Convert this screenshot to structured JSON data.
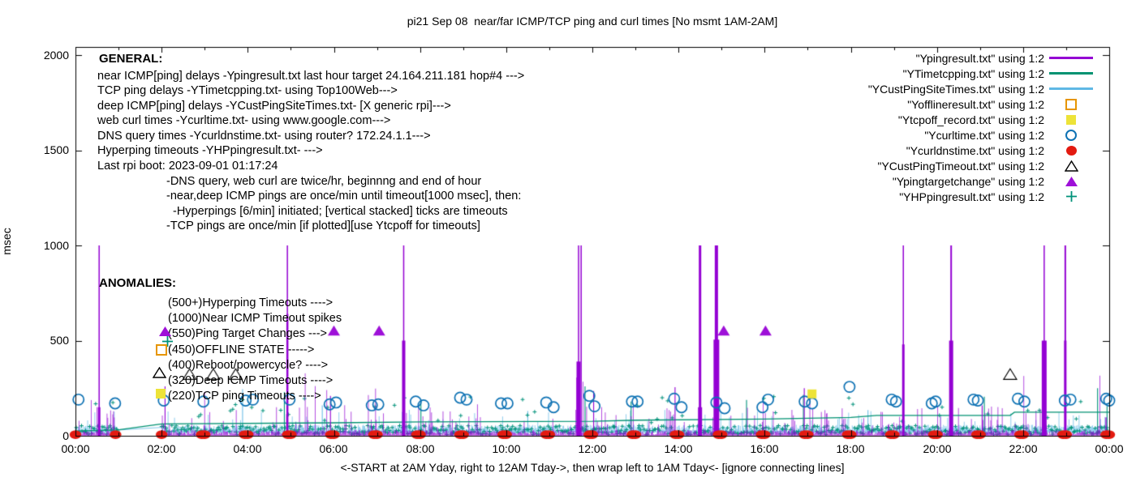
{
  "title": "pi21 Sep 08  near/far ICMP/TCP ping and curl times [No msmt 1AM-2AM]",
  "axes": {
    "ylabel": "msec",
    "xlabel": "<-START at 2AM Yday, right to 12AM Tday->, then wrap left to 1AM Tday<- [ignore connecting lines]",
    "yticks": [
      "0",
      "500",
      "1000",
      "1500",
      "2000"
    ],
    "xticks": [
      "00:00",
      "02:00",
      "04:00",
      "06:00",
      "08:00",
      "10:00",
      "12:00",
      "14:00",
      "16:00",
      "18:00",
      "20:00",
      "22:00",
      "00:00"
    ]
  },
  "legend": {
    "items": [
      {
        "label": "\"Ypingresult.txt\" using 1:2",
        "marker": "line",
        "color": "#9400D3"
      },
      {
        "label": "\"YTimetcpping.txt\" using 1:2",
        "marker": "line",
        "color": "#009272"
      },
      {
        "label": "\"YCustPingSiteTimes.txt\" using 1:2",
        "marker": "line",
        "color": "#5FB8E5"
      },
      {
        "label": "\"Yofflineresult.txt\" using 1:2",
        "marker": "square-open",
        "color": "#E69500"
      },
      {
        "label": "\"Ytcpoff_record.txt\" using 1:2",
        "marker": "square-fill",
        "color": "#EDE338"
      },
      {
        "label": "\"Ycurltime.txt\" using 1:2",
        "marker": "circle-open",
        "color": "#0E72B4"
      },
      {
        "label": "\"Ycurldnstime.txt\" using 1:2",
        "marker": "circle-fill",
        "color": "#E31A10"
      },
      {
        "label": "\"YCustPingTimeout.txt\" using 1:2",
        "marker": "triangle-open",
        "color": "#000000"
      },
      {
        "label": "\"Ypingtargetchange\" using 1:2",
        "marker": "triangle-fill",
        "color": "#9E10D8"
      },
      {
        "label": "\"YHPpingresult.txt\" using 1:2",
        "marker": "plus",
        "color": "#00927A"
      }
    ]
  },
  "general": {
    "heading": "GENERAL:",
    "lines": [
      "near ICMP[ping] delays -Ypingresult.txt last hour target 24.164.211.181 hop#4 --->",
      "TCP ping delays -YTimetcpping.txt- using Top100Web--->",
      "deep ICMP[ping] delays -YCustPingSiteTimes.txt- [X generic rpi]--->",
      "web curl times -Ycurltime.txt- using www.google.com--->",
      "DNS query times -Ycurldnstime.txt- using router? 172.24.1.1--->",
      "Hyperping timeouts -YHPpingresult.txt- --->",
      "Last rpi boot: 2023-09-01 01:17:24",
      "-DNS query, web curl are twice/hr, beginnng and end of hour",
      "-near,deep ICMP pings are once/min until timeout[1000 msec], then:",
      "-Hyperpings [6/min] initiated; [vertical stacked] ticks are timeouts",
      "-TCP pings are once/min [if plotted][use Ytcpoff for timeouts]"
    ]
  },
  "anomalies": {
    "heading": "ANOMALIES:",
    "lines": [
      "(500+)Hyperping Timeouts ---->",
      "(1000)Near ICMP Timeout spikes",
      "(550)Ping Target Changes --->",
      "(450)OFFLINE STATE ----->",
      "(400)Reboot/powercycle? ---->",
      "(320)Deep ICMP Timeouts ---->",
      "(220)TCP ping Timeouts ---->"
    ]
  },
  "chart_data": {
    "type": "line",
    "title": "pi21 Sep 08  near/far ICMP/TCP ping and curl times [No msmt 1AM-2AM]",
    "xlabel": "<-START at 2AM Yday, right to 12AM Tday->, then wrap left to 1AM Tday<- [ignore connecting lines]",
    "ylabel": "msec",
    "xlim": [
      0,
      24
    ],
    "ylim": [
      0,
      2000
    ],
    "x_tick_step_hours": 2,
    "x_minor_tick_hours": 1,
    "grid": false,
    "legend_position": "top-right",
    "no_measurement_gap_hours": [
      1,
      2
    ],
    "colors": {
      "near_icmp": "#9400D3",
      "tcp_ping": "#009272",
      "deep_icmp": "#5FB8E5",
      "offline": "#E69500",
      "tcp_off": "#EDE338",
      "curl": "#0E72B4",
      "dns": "#E31A10",
      "deep_timeout": "#000000",
      "target_change": "#9E10D8",
      "hyperping": "#00927A"
    },
    "series": {
      "near_icmp_timeout_spikes": [
        {
          "t": 0.55,
          "v": 1000,
          "w": 1.5,
          "shoulder": 150,
          "sw": 3
        },
        {
          "t": 4.92,
          "v": 1000,
          "w": 1.5,
          "shoulder": 640,
          "sw": 2.5
        },
        {
          "t": 7.62,
          "v": 1000,
          "w": 1.5,
          "shoulder": 500,
          "sw": 4
        },
        {
          "t": 11.68,
          "v": 1000,
          "w": 1.5,
          "shoulder": 390,
          "sw": 5
        },
        {
          "t": 11.74,
          "v": 1000,
          "w": 1.5
        },
        {
          "t": 14.5,
          "v": 1000,
          "w": 3,
          "shoulder": 150,
          "sw": 5
        },
        {
          "t": 14.88,
          "v": 1000,
          "w": 4,
          "shoulder": 505,
          "sw": 7
        },
        {
          "t": 19.22,
          "v": 1000,
          "w": 1.5,
          "shoulder": 480,
          "sw": 3
        },
        {
          "t": 20.33,
          "v": 1000,
          "w": 2,
          "shoulder": 500,
          "sw": 5
        },
        {
          "t": 22.49,
          "v": 1000,
          "w": 1.5,
          "shoulder": 500,
          "sw": 6
        },
        {
          "t": 22.98,
          "v": 1000,
          "w": 2,
          "shoulder": 500,
          "sw": 3
        }
      ],
      "near_icmp_medium_spikes": [
        {
          "t": 2.08,
          "v": 260
        },
        {
          "t": 5.92,
          "v": 210
        },
        {
          "t": 12.03,
          "v": 235
        },
        {
          "t": 13.92,
          "v": 255
        },
        {
          "t": 16.92,
          "v": 250
        },
        {
          "t": 21.05,
          "v": 160
        }
      ],
      "tcp_ping_line": [
        [
          0,
          25
        ],
        [
          0.97,
          30
        ],
        [
          2,
          62
        ],
        [
          6,
          68
        ],
        [
          8,
          73
        ],
        [
          12,
          76
        ],
        [
          13,
          82
        ],
        [
          16,
          88
        ],
        [
          18,
          96
        ],
        [
          18.6,
          107
        ],
        [
          21.7,
          107
        ],
        [
          21.8,
          124
        ],
        [
          24,
          124
        ]
      ],
      "hyperping_spikes": [
        {
          "t": 4.85,
          "v": 230
        },
        {
          "t": 8.02,
          "v": 185
        },
        {
          "t": 11.83,
          "v": 260
        },
        {
          "t": 12.9,
          "v": 180
        },
        {
          "t": 15.58,
          "v": 188
        },
        {
          "t": 16.9,
          "v": 215
        },
        {
          "t": 21.1,
          "v": 205
        },
        {
          "t": 23.73,
          "v": 250
        },
        {
          "t": 23.95,
          "v": 155
        }
      ],
      "deep_icmp_spikes": [
        {
          "t": 3.88,
          "v": 245
        },
        {
          "t": 5.73,
          "v": 160
        },
        {
          "t": 10.5,
          "v": 130
        },
        {
          "t": 18.4,
          "v": 135
        }
      ],
      "curl_circles": [
        {
          "t": 0.07,
          "v": 190
        },
        {
          "t": 0.92,
          "v": 170
        },
        {
          "t": 2.05,
          "v": 185
        },
        {
          "t": 2.97,
          "v": 180
        },
        {
          "t": 3.95,
          "v": 185
        },
        {
          "t": 4.12,
          "v": 190
        },
        {
          "t": 4.97,
          "v": 190
        },
        {
          "t": 5.9,
          "v": 165
        },
        {
          "t": 6.05,
          "v": 175
        },
        {
          "t": 6.88,
          "v": 160
        },
        {
          "t": 7.03,
          "v": 165
        },
        {
          "t": 7.9,
          "v": 180
        },
        {
          "t": 8.08,
          "v": 160
        },
        {
          "t": 8.93,
          "v": 200
        },
        {
          "t": 9.08,
          "v": 190
        },
        {
          "t": 9.88,
          "v": 170
        },
        {
          "t": 10.03,
          "v": 170
        },
        {
          "t": 10.93,
          "v": 175
        },
        {
          "t": 11.1,
          "v": 150
        },
        {
          "t": 11.93,
          "v": 210
        },
        {
          "t": 12.05,
          "v": 155
        },
        {
          "t": 12.92,
          "v": 180
        },
        {
          "t": 13.05,
          "v": 180
        },
        {
          "t": 13.9,
          "v": 195
        },
        {
          "t": 14.07,
          "v": 150
        },
        {
          "t": 14.88,
          "v": 175
        },
        {
          "t": 15.07,
          "v": 145
        },
        {
          "t": 15.95,
          "v": 150
        },
        {
          "t": 16.08,
          "v": 190
        },
        {
          "t": 16.93,
          "v": 180
        },
        {
          "t": 17.1,
          "v": 170
        },
        {
          "t": 17.97,
          "v": 257
        },
        {
          "t": 18.95,
          "v": 190
        },
        {
          "t": 19.05,
          "v": 180
        },
        {
          "t": 19.88,
          "v": 170
        },
        {
          "t": 19.97,
          "v": 180
        },
        {
          "t": 20.85,
          "v": 190
        },
        {
          "t": 20.95,
          "v": 185
        },
        {
          "t": 21.88,
          "v": 195
        },
        {
          "t": 22.03,
          "v": 180
        },
        {
          "t": 22.97,
          "v": 185
        },
        {
          "t": 23.1,
          "v": 190
        },
        {
          "t": 23.93,
          "v": 195
        },
        {
          "t": 24.0,
          "v": 185
        }
      ],
      "dns_dots_t": [
        0,
        0.93,
        2,
        2.93,
        3,
        3.93,
        4,
        4.93,
        5,
        5.93,
        6,
        6.93,
        7,
        7.93,
        8,
        8.93,
        9,
        9.93,
        10,
        10.93,
        11,
        11.93,
        12,
        12.93,
        13,
        13.93,
        14,
        14.93,
        15,
        15.93,
        16,
        16.93,
        17,
        17.93,
        18,
        18.93,
        19,
        19.93,
        20,
        20.93,
        21,
        21.93,
        22,
        22.93,
        23,
        23.93,
        24
      ],
      "dns_dots_value": 6,
      "deep_timeout_triangles": [
        {
          "t": 2.65,
          "v": 320
        },
        {
          "t": 3.2,
          "v": 320
        },
        {
          "t": 3.72,
          "v": 320
        },
        {
          "t": 21.7,
          "v": 320
        }
      ],
      "target_change_triangles": [
        {
          "t": 6.0,
          "v": 550
        },
        {
          "t": 7.05,
          "v": 550
        },
        {
          "t": 15.05,
          "v": 550
        },
        {
          "t": 16.02,
          "v": 550
        }
      ],
      "tcp_off_squares": [
        {
          "t": 17.1,
          "v": 220
        }
      ],
      "offline_squares": [],
      "noise": {
        "seed": 42,
        "near_base": [
          4,
          30
        ],
        "deep_base": [
          22,
          58
        ],
        "hp_base": [
          6,
          54
        ]
      }
    },
    "annotation_markers": [
      {
        "type": "triangle-fill",
        "t": 2.08,
        "v": 548
      },
      {
        "type": "plus",
        "t": 2.13,
        "v": 498
      },
      {
        "type": "square-open",
        "t": 2.0,
        "v": 452
      },
      {
        "type": "triangle-open",
        "t": 1.97,
        "v": 330
      },
      {
        "type": "square-fill",
        "t": 1.98,
        "v": 222
      }
    ]
  }
}
